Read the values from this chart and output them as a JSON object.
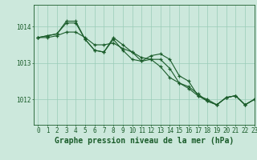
{
  "title": "Graphe pression niveau de la mer (hPa)",
  "background_color": "#cce8dc",
  "grid_color": "#99ccb8",
  "line_color": "#1a5c2a",
  "xlim": [
    -0.5,
    23
  ],
  "ylim": [
    1011.3,
    1014.6
  ],
  "yticks": [
    1012,
    1013,
    1014
  ],
  "xticks": [
    0,
    1,
    2,
    3,
    4,
    5,
    6,
    7,
    8,
    9,
    10,
    11,
    12,
    13,
    14,
    15,
    16,
    17,
    18,
    19,
    20,
    21,
    22,
    23
  ],
  "series1": [
    1013.7,
    1013.7,
    1013.75,
    1013.85,
    1013.85,
    1013.7,
    1013.5,
    1013.5,
    1013.55,
    1013.4,
    1013.3,
    1013.15,
    1013.1,
    1012.9,
    1012.6,
    1012.45,
    1012.3,
    1012.1,
    1012.0,
    1011.85,
    1012.05,
    1012.1,
    1011.85,
    1012.0
  ],
  "series2": [
    1013.7,
    1013.75,
    1013.8,
    1014.1,
    1014.1,
    1013.65,
    1013.35,
    1013.3,
    1013.65,
    1013.35,
    1013.1,
    1013.05,
    1013.1,
    1013.1,
    1012.85,
    1012.45,
    1012.35,
    1012.15,
    1011.95,
    1011.85,
    1012.05,
    1012.1,
    1011.85,
    1012.0
  ],
  "series3": [
    1013.7,
    1013.75,
    1013.8,
    1014.15,
    1014.15,
    1013.65,
    1013.35,
    1013.3,
    1013.7,
    1013.5,
    1013.3,
    1013.05,
    1013.2,
    1013.25,
    1013.1,
    1012.65,
    1012.5,
    1012.1,
    1011.95,
    1011.85,
    1012.05,
    1012.1,
    1011.85,
    1012.0
  ],
  "tick_fontsize": 5.5,
  "title_fontsize": 7.0,
  "linewidth": 0.8,
  "markersize": 3.0
}
